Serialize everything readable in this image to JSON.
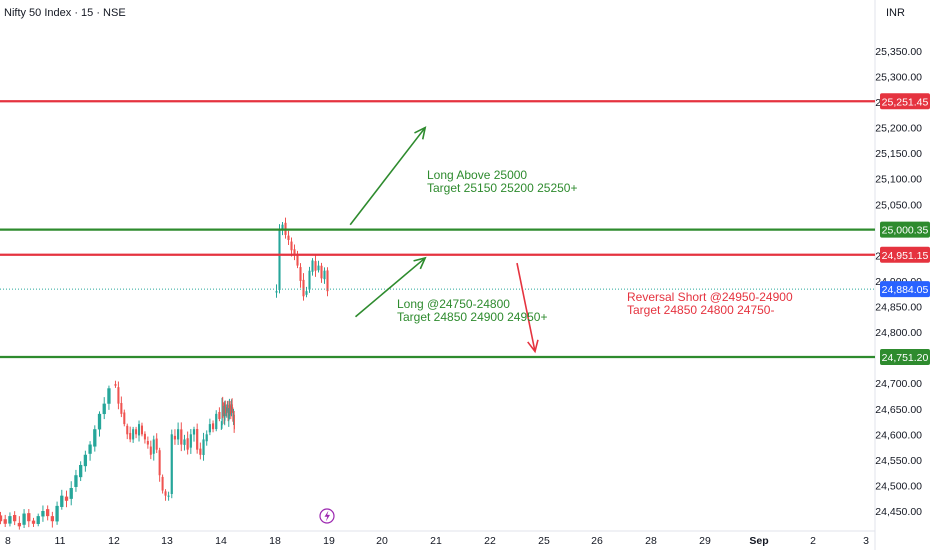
{
  "header": {
    "title": "Nifty 50 Index · 15 · NSE",
    "currency": "INR"
  },
  "colors": {
    "green": "#2e8b2e",
    "red": "#e5333f",
    "up": "#26a69a",
    "down": "#ef5350",
    "last": "#2962ff"
  },
  "icons": {
    "event": "lightning-icon"
  },
  "chart_data": {
    "type": "candlestick",
    "price_axis": {
      "ylim": [
        24415,
        25420
      ],
      "ticks": [
        "25,350.00",
        "25,300.00",
        "25,250.00",
        "25,200.00",
        "25,150.00",
        "25,100.00",
        "25,050.00",
        "24,950.00",
        "24,900.00",
        "24,850.00",
        "24,800.00",
        "24,700.00",
        "24,650.00",
        "24,600.00",
        "24,550.00",
        "24,500.00",
        "24,450.00"
      ],
      "tick_values": [
        25350,
        25300,
        25250,
        25200,
        25150,
        25100,
        25050,
        24950,
        24900,
        24850,
        24800,
        24700,
        24650,
        24600,
        24550,
        24500,
        24450
      ]
    },
    "time_axis": {
      "ticks": [
        "8",
        "11",
        "12",
        "13",
        "14",
        "18",
        "19",
        "20",
        "21",
        "22",
        "25",
        "26",
        "28",
        "29",
        "Sep",
        "2",
        "3"
      ]
    },
    "levels": [
      {
        "label": "25,251.45",
        "value": 25251.45,
        "color": "red"
      },
      {
        "label": "25,000.35",
        "value": 25000.35,
        "color": "green"
      },
      {
        "label": "24,951.15",
        "value": 24951.15,
        "color": "red"
      },
      {
        "label": "24,884.05",
        "value": 24884.05,
        "color": "last"
      },
      {
        "label": "24,751.20",
        "value": 24751.2,
        "color": "green"
      }
    ],
    "annotations": [
      {
        "color": "green",
        "lines": [
          "Long Above 25000",
          "Target 25150 25200 25250+"
        ]
      },
      {
        "color": "green",
        "lines": [
          "Long @24750-24800",
          "Target 24850 24900 24950+"
        ]
      },
      {
        "color": "red",
        "lines": [
          "Reversal Short @24950-24900",
          "Target 24850 24800 24750-"
        ]
      }
    ],
    "arrows": [
      {
        "color": "green",
        "from": [
          19.4,
          25010
        ],
        "to": [
          20.8,
          25200
        ]
      },
      {
        "color": "green",
        "from": [
          19.5,
          24830
        ],
        "to": [
          20.8,
          24945
        ]
      },
      {
        "color": "red",
        "from": [
          23.5,
          24935
        ],
        "to": [
          24.5,
          24762
        ]
      }
    ],
    "candles_segments": [
      {
        "x_start": 7.0,
        "x_end": 11.95,
        "closes": [
          24630,
          24600,
          24540,
          24500,
          24470,
          24455,
          24440,
          24430,
          24420,
          24440,
          24430,
          24425,
          24440,
          24430,
          24420,
          24445,
          24430,
          24425,
          24440,
          24450,
          24440,
          24430,
          24460,
          24480,
          24470,
          24495,
          24520,
          24540,
          24560,
          24580,
          24610,
          24640,
          24660,
          24690
        ]
      },
      {
        "x_start": 12.0,
        "x_end": 13.0,
        "closes": [
          24695,
          24660,
          24640,
          24620,
          24600,
          24590,
          24610,
          24600,
          24620,
          24600,
          24590,
          24580,
          24560,
          24590,
          24570,
          24520,
          24490,
          24480
        ]
      },
      {
        "x_start": 13.0,
        "x_end": 14.0,
        "closes": [
          24480,
          24600,
          24590,
          24610,
          24580,
          24590,
          24570,
          24600,
          24610,
          24570,
          24560,
          24590,
          24600,
          24620,
          24610,
          24640,
          24630
        ]
      },
      {
        "x_start": 14.0,
        "x_end": 15.0,
        "closes": [
          24620,
          24660,
          24640,
          24650,
          24630,
          24660,
          24650,
          24640,
          24650,
          24660,
          24630,
          24640,
          24660,
          24650,
          24640,
          24655,
          24650,
          24630,
          24640,
          24610
        ]
      },
      {
        "x_start": 18.0,
        "x_end": 19.0,
        "closes": [
          24880,
          25000,
          25010,
          24990,
          24980,
          24960,
          24950,
          24930,
          24900,
          24870,
          24880,
          24920,
          24940,
          24920,
          24930,
          24905,
          24920,
          24880
        ]
      }
    ]
  }
}
